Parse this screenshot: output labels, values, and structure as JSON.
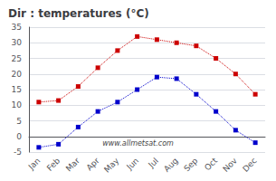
{
  "chart_data": {
    "type": "line",
    "title": "Dir : temperatures (°C)",
    "categories": [
      "Jan",
      "Feb",
      "Mar",
      "Apr",
      "May",
      "Jun",
      "Jul",
      "Aug",
      "Sep",
      "Oct",
      "Nov",
      "Dec"
    ],
    "series": [
      {
        "color": "#cc0000",
        "values": [
          11,
          11.5,
          16,
          22,
          27.5,
          32,
          31,
          30,
          29,
          25,
          20,
          13.5
        ]
      },
      {
        "color": "#0000cc",
        "values": [
          -3.5,
          -2.5,
          3,
          8,
          11,
          15,
          19,
          18.5,
          13.5,
          8,
          2,
          -2
        ]
      }
    ],
    "ylim": [
      -5,
      35
    ],
    "yticks": [
      -5,
      0,
      5,
      10,
      15,
      20,
      25,
      30,
      35
    ],
    "grid": true,
    "marker": "square",
    "line_style": "dotted",
    "annotations": [
      "www.allmetsat.com"
    ]
  }
}
